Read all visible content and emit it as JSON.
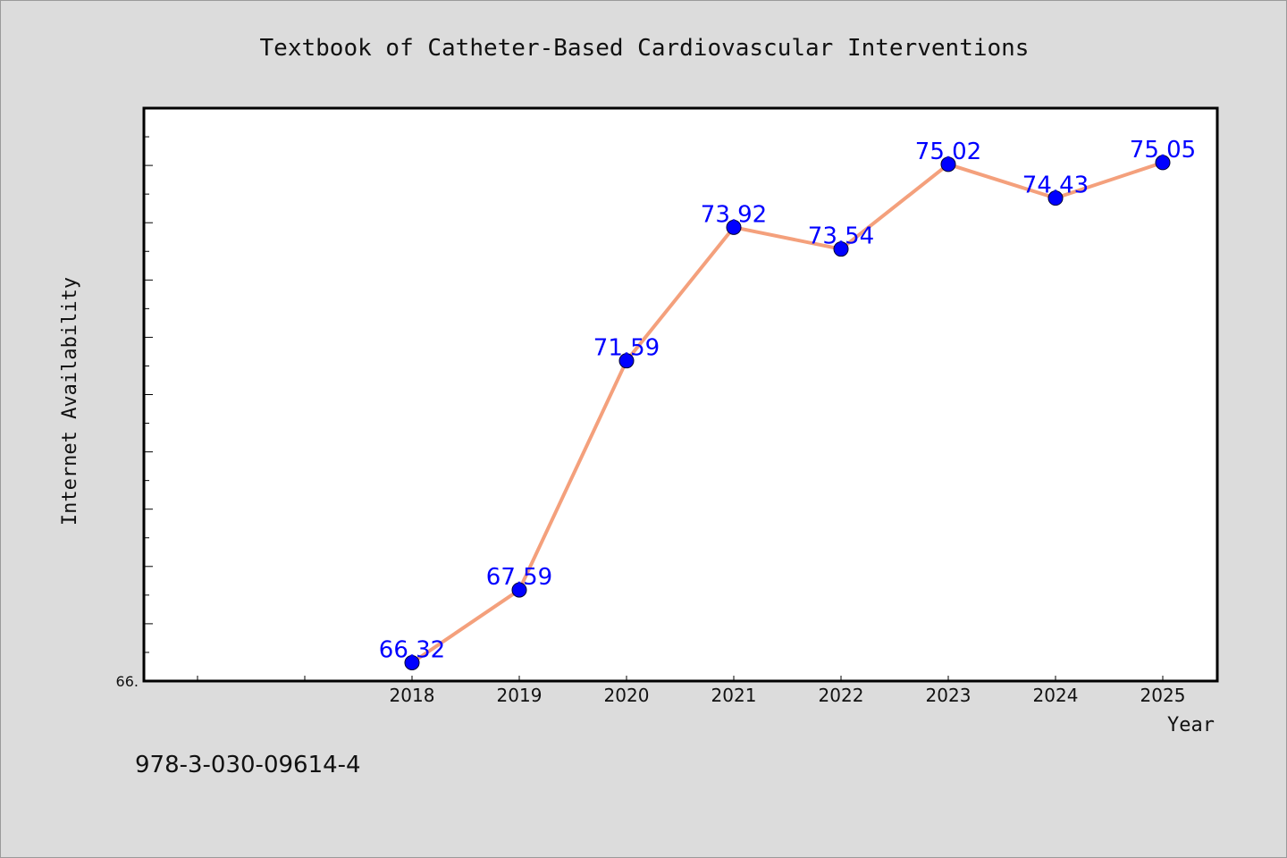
{
  "chart_data": {
    "type": "line",
    "title": "Textbook of Catheter-Based Cardiovascular Interventions",
    "xlabel": "Year",
    "ylabel": "Internet Availability",
    "x": [
      "2018",
      "2019",
      "2020",
      "2021",
      "2022",
      "2023",
      "2024",
      "2025"
    ],
    "series": [
      {
        "values": [
          66.32,
          67.59,
          71.59,
          73.92,
          73.54,
          75.02,
          74.43,
          75.05
        ],
        "color": "#f4a07c",
        "marker_color": "#0000ff"
      }
    ],
    "data_labels": [
      "66.32",
      "67.59",
      "71.59",
      "73.92",
      "73.54",
      "75.02",
      "74.43",
      "75.05"
    ],
    "ylim": [
      66.0,
      76.0
    ],
    "y_min_label": "66.",
    "grid": false,
    "legend": "none"
  },
  "footer": {
    "isbn": "978-3-030-09614-4"
  },
  "colors": {
    "background": "#dcdcdc",
    "plot_background": "#ffffff",
    "line": "#f4a07c",
    "marker": "#0000ff",
    "data_label": "#0000ff"
  }
}
